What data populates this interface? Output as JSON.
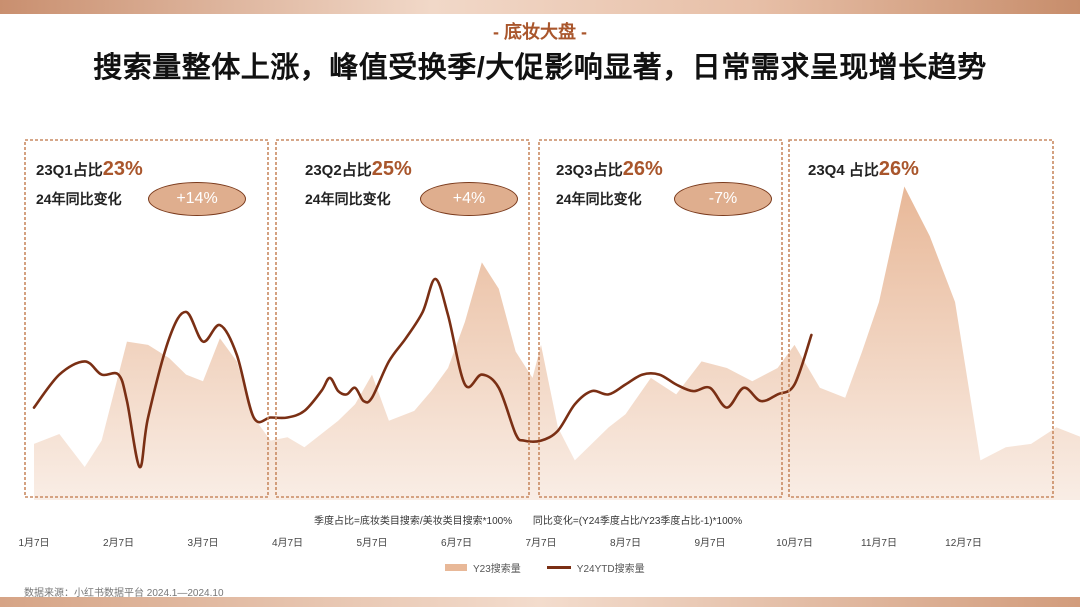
{
  "header": {
    "section_tag": "- 底妆大盘 -",
    "headline": "搜索量整体上涨，峰值受换季/大促影响显著，日常需求呈现增长趋势"
  },
  "quarters": [
    {
      "title_label": "23Q1占比",
      "share": "23%",
      "change_label": "24年同比变化",
      "change": "+14%"
    },
    {
      "title_label": "23Q2占比",
      "share": "25%",
      "change_label": "24年同比变化",
      "change": "+4%"
    },
    {
      "title_label": "23Q3占比",
      "share": "26%",
      "change_label": "24年同比变化",
      "change": "-7%"
    },
    {
      "title_label": "23Q4 占比",
      "share": "26%"
    }
  ],
  "footnote": {
    "quarter_share": "季度占比=底妆类目搜索/美妆类目搜索*100%",
    "yoy_change": "同比变化=(Y24季度占比/Y23季度占比-1)*100%"
  },
  "source": "数据来源：小红书数据平台 2024.1—2024.10",
  "colors": {
    "area": "#e8b898",
    "line": "#7a2f14",
    "accent": "#a9562c",
    "box_border": "#c98a62"
  },
  "chart_data": {
    "type": "area",
    "x_ticks": [
      "1月7日",
      "2月7日",
      "3月7日",
      "4月7日",
      "5月7日",
      "6月7日",
      "7月7日",
      "8月7日",
      "9月7日",
      "10月7日",
      "11月7日",
      "12月7日"
    ],
    "ylim": [
      0,
      100
    ],
    "grid": false,
    "legend_position": "bottom",
    "series": [
      {
        "name": "Y23搜索量",
        "kind": "area",
        "points": [
          [
            0,
            17
          ],
          [
            0.3,
            20
          ],
          [
            0.6,
            10
          ],
          [
            0.8,
            18
          ],
          [
            1.1,
            48
          ],
          [
            1.35,
            47
          ],
          [
            1.6,
            43
          ],
          [
            1.8,
            38
          ],
          [
            2.0,
            36
          ],
          [
            2.2,
            49
          ],
          [
            2.4,
            42
          ],
          [
            2.6,
            25
          ],
          [
            2.8,
            18
          ],
          [
            3.0,
            19
          ],
          [
            3.2,
            16
          ],
          [
            3.4,
            20
          ],
          [
            3.6,
            24
          ],
          [
            3.8,
            29
          ],
          [
            4.0,
            38
          ],
          [
            4.2,
            24
          ],
          [
            4.5,
            27
          ],
          [
            4.7,
            33
          ],
          [
            4.9,
            40
          ],
          [
            5.1,
            54
          ],
          [
            5.3,
            72
          ],
          [
            5.5,
            64
          ],
          [
            5.7,
            45
          ],
          [
            5.9,
            37
          ],
          [
            6.0,
            47
          ],
          [
            6.2,
            22
          ],
          [
            6.4,
            12
          ],
          [
            6.6,
            17
          ],
          [
            6.8,
            22
          ],
          [
            7.0,
            26
          ],
          [
            7.3,
            37
          ],
          [
            7.6,
            32
          ],
          [
            7.9,
            42
          ],
          [
            8.2,
            40
          ],
          [
            8.5,
            36
          ],
          [
            8.8,
            40
          ],
          [
            9.0,
            47
          ],
          [
            9.3,
            34
          ],
          [
            9.6,
            31
          ],
          [
            9.8,
            45
          ],
          [
            10.0,
            60
          ],
          [
            10.3,
            95
          ],
          [
            10.6,
            80
          ],
          [
            10.9,
            60
          ],
          [
            11.2,
            12
          ],
          [
            11.5,
            16
          ],
          [
            11.8,
            17
          ],
          [
            12.1,
            22
          ],
          [
            12.4,
            19
          ],
          [
            12.7,
            13
          ],
          [
            13.0,
            23
          ]
        ]
      },
      {
        "name": "Y24YTD搜索量",
        "kind": "line",
        "points": [
          [
            0,
            28
          ],
          [
            0.3,
            38
          ],
          [
            0.6,
            42
          ],
          [
            0.8,
            38
          ],
          [
            1.0,
            38
          ],
          [
            1.1,
            30
          ],
          [
            1.25,
            10
          ],
          [
            1.35,
            25
          ],
          [
            1.6,
            49
          ],
          [
            1.8,
            57
          ],
          [
            2.0,
            48
          ],
          [
            2.2,
            53
          ],
          [
            2.4,
            44
          ],
          [
            2.6,
            25
          ],
          [
            2.8,
            25
          ],
          [
            3.0,
            25
          ],
          [
            3.2,
            27
          ],
          [
            3.4,
            33
          ],
          [
            3.5,
            37
          ],
          [
            3.6,
            33
          ],
          [
            3.7,
            32
          ],
          [
            3.8,
            34
          ],
          [
            3.9,
            30
          ],
          [
            4.0,
            31
          ],
          [
            4.2,
            42
          ],
          [
            4.4,
            49
          ],
          [
            4.6,
            57
          ],
          [
            4.75,
            67
          ],
          [
            4.9,
            56
          ],
          [
            5.1,
            35
          ],
          [
            5.3,
            38
          ],
          [
            5.5,
            34
          ],
          [
            5.7,
            20
          ],
          [
            5.8,
            18
          ],
          [
            6.0,
            18
          ],
          [
            6.2,
            21
          ],
          [
            6.4,
            29
          ],
          [
            6.6,
            33
          ],
          [
            6.8,
            32
          ],
          [
            7.0,
            35
          ],
          [
            7.2,
            38
          ],
          [
            7.4,
            38
          ],
          [
            7.6,
            35
          ],
          [
            7.8,
            33
          ],
          [
            8.0,
            34
          ],
          [
            8.2,
            28
          ],
          [
            8.4,
            34
          ],
          [
            8.6,
            30
          ],
          [
            8.8,
            32
          ],
          [
            9.0,
            35
          ],
          [
            9.2,
            50
          ]
        ]
      }
    ]
  }
}
